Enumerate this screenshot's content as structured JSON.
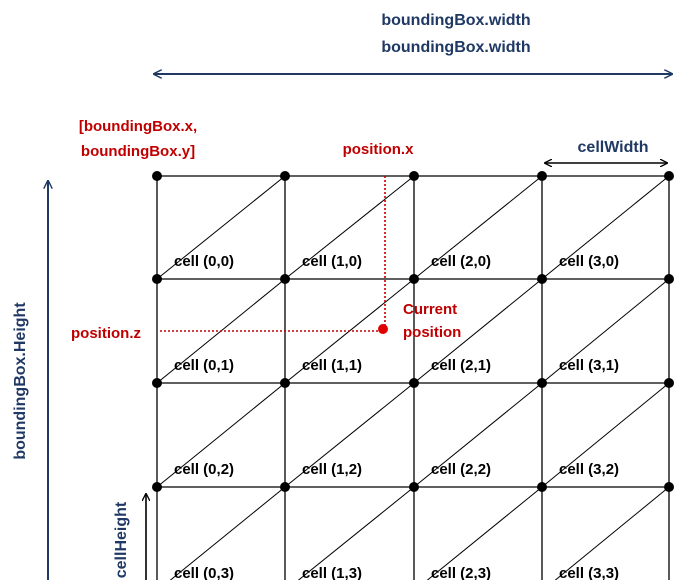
{
  "labels": {
    "width_line1": "boundingBox.width",
    "width_line2": "boundingBox.width",
    "origin_line1": "[boundingBox.x,",
    "origin_line2": "boundingBox.y]",
    "position_x": "position.x",
    "position_z": "position.z",
    "cell_width": "cellWidth",
    "current_line1": "Current",
    "current_line2": "position",
    "bbox_height": "boundingBox.Height",
    "cell_height": "cellHeight"
  },
  "cells": [
    [
      "cell (0,0)",
      "cell (1,0)",
      "cell (2,0)",
      "cell (3,0)"
    ],
    [
      "cell (0,1)",
      "cell (1,1)",
      "cell (2,1)",
      "cell (3,1)"
    ],
    [
      "cell (0,2)",
      "cell (1,2)",
      "cell (2,2)",
      "cell (3,2)"
    ],
    [
      "cell (0,3)",
      "cell (1,3)",
      "cell (2,3)",
      "cell (3,3)"
    ]
  ],
  "colors": {
    "dimension": "#1f3864",
    "position": "#c00000",
    "grid": "#000000"
  }
}
